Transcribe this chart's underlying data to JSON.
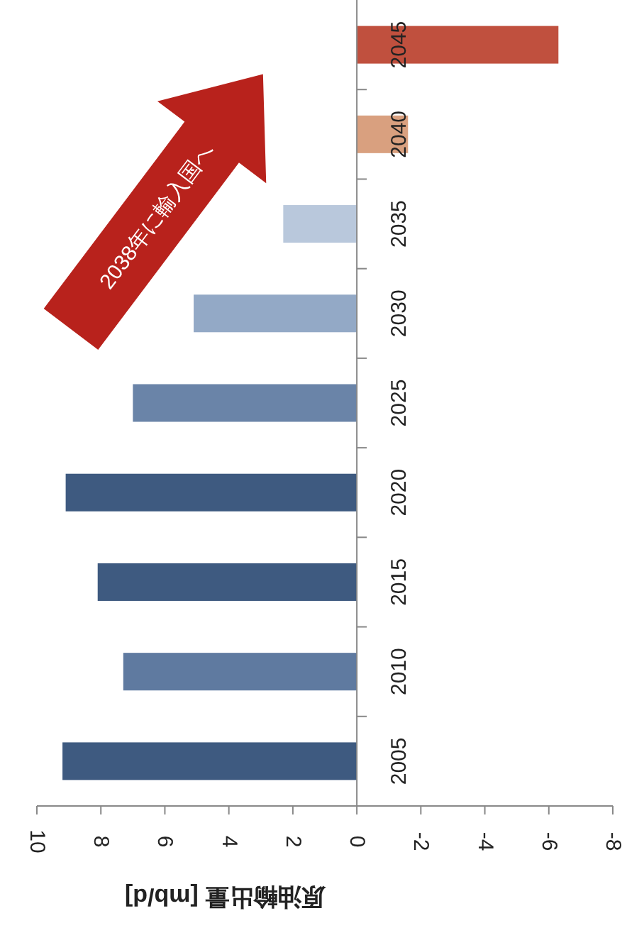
{
  "chart_data": {
    "type": "bar",
    "orientation": "horizontal",
    "xlabel": "原油輸出量 [mb/d]",
    "categories": [
      "2045",
      "2040",
      "2035",
      "2030",
      "2025",
      "2020",
      "2015",
      "2010",
      "2005"
    ],
    "values": [
      -6.3,
      -1.6,
      2.3,
      5.1,
      7.0,
      9.1,
      8.1,
      7.3,
      9.2
    ],
    "colors": [
      "#c0503e",
      "#d9a07f",
      "#b9c8dc",
      "#93a9c6",
      "#6a84a8",
      "#3e5a80",
      "#3e5a80",
      "#5f7aa0",
      "#3e5a80"
    ],
    "xlim": [
      10,
      -8
    ],
    "xticks": [
      10,
      8,
      6,
      4,
      2,
      0,
      -2,
      -4,
      -6,
      -8
    ],
    "annotations": [
      "2038年に輸入国へ"
    ]
  }
}
